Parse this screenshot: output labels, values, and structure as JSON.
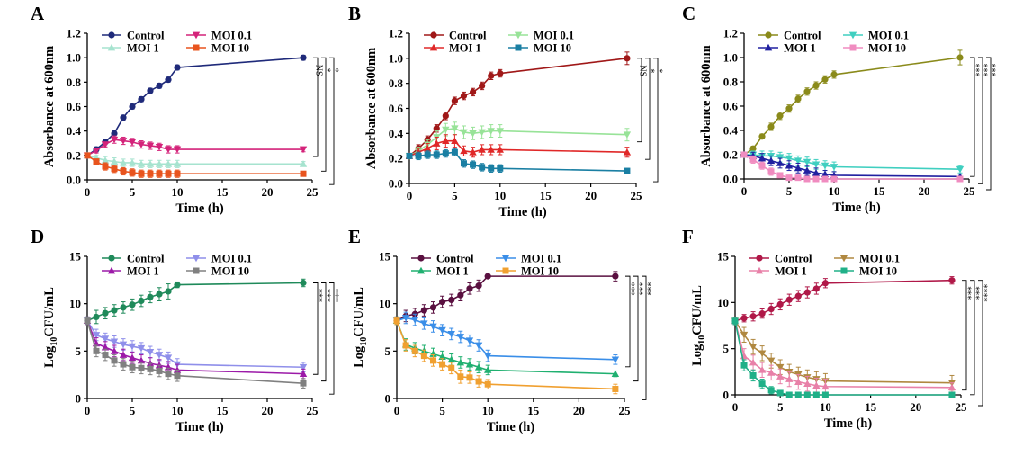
{
  "chart_data": [
    {
      "type": "line",
      "panel": "A",
      "ylabel": "Absorbance at 600nm",
      "xlabel": "Time (h)",
      "xlim": [
        0,
        25
      ],
      "ylim": [
        0,
        1.2
      ],
      "xticks": [
        0,
        5,
        10,
        15,
        20,
        25
      ],
      "yticks": [
        0.0,
        0.2,
        0.4,
        0.6,
        0.8,
        1.0,
        1.2
      ],
      "ydecimals": 1,
      "x": [
        0,
        1,
        2,
        3,
        4,
        5,
        6,
        7,
        8,
        9,
        10,
        24
      ],
      "legend_layout": "2x2",
      "series": [
        {
          "name": "Control",
          "color": "#1f2a7a",
          "marker": "circle",
          "values": [
            0.2,
            0.25,
            0.31,
            0.38,
            0.51,
            0.6,
            0.66,
            0.73,
            0.77,
            0.82,
            0.92,
            1.0
          ],
          "err": [
            0.01,
            0.02,
            0.02,
            0.02,
            0.02,
            0.02,
            0.02,
            0.02,
            0.02,
            0.02,
            0.02,
            0.02
          ]
        },
        {
          "name": "MOI 0.1",
          "color": "#d4237a",
          "marker": "tri_down",
          "values": [
            0.2,
            0.24,
            0.29,
            0.33,
            0.32,
            0.31,
            0.29,
            0.28,
            0.27,
            0.25,
            0.25,
            0.25
          ],
          "err": [
            0.01,
            0.02,
            0.02,
            0.03,
            0.03,
            0.03,
            0.03,
            0.03,
            0.03,
            0.03,
            0.03,
            0.02
          ]
        },
        {
          "name": "MOI 1",
          "color": "#a6e3cf",
          "marker": "tri_up",
          "values": [
            0.2,
            0.18,
            0.16,
            0.15,
            0.14,
            0.14,
            0.13,
            0.13,
            0.13,
            0.13,
            0.13,
            0.13
          ],
          "err": [
            0.01,
            0.02,
            0.03,
            0.03,
            0.03,
            0.03,
            0.03,
            0.03,
            0.03,
            0.03,
            0.03,
            0.02
          ]
        },
        {
          "name": "MOI 10",
          "color": "#e8541e",
          "marker": "square",
          "values": [
            0.2,
            0.15,
            0.11,
            0.09,
            0.07,
            0.06,
            0.05,
            0.05,
            0.05,
            0.05,
            0.05,
            0.05
          ],
          "err": [
            0.01,
            0.02,
            0.03,
            0.03,
            0.03,
            0.03,
            0.03,
            0.03,
            0.03,
            0.03,
            0.03,
            0.02
          ]
        }
      ],
      "significance": [
        "NS",
        "*",
        "*"
      ]
    },
    {
      "type": "line",
      "panel": "B",
      "ylabel": "Absorbance at 600nm",
      "xlabel": "Time (h)",
      "xlim": [
        0,
        25
      ],
      "ylim": [
        0,
        1.2
      ],
      "xticks": [
        0,
        5,
        10,
        15,
        20,
        25
      ],
      "yticks": [
        0.0,
        0.2,
        0.4,
        0.6,
        0.8,
        1.0,
        1.2
      ],
      "ydecimals": 1,
      "x": [
        0,
        1,
        2,
        3,
        4,
        5,
        6,
        7,
        8,
        9,
        10,
        24
      ],
      "legend_layout": "2x2",
      "series": [
        {
          "name": "Control",
          "color": "#a01818",
          "marker": "circle",
          "values": [
            0.22,
            0.28,
            0.35,
            0.44,
            0.54,
            0.66,
            0.7,
            0.73,
            0.78,
            0.86,
            0.88,
            1.0
          ],
          "err": [
            0.02,
            0.03,
            0.03,
            0.03,
            0.03,
            0.03,
            0.03,
            0.03,
            0.03,
            0.03,
            0.03,
            0.05
          ]
        },
        {
          "name": "MOI 0.1",
          "color": "#98e398",
          "marker": "tri_down",
          "values": [
            0.22,
            0.26,
            0.31,
            0.37,
            0.43,
            0.44,
            0.41,
            0.4,
            0.41,
            0.42,
            0.42,
            0.39
          ],
          "err": [
            0.02,
            0.03,
            0.04,
            0.05,
            0.05,
            0.05,
            0.05,
            0.05,
            0.05,
            0.05,
            0.05,
            0.05
          ]
        },
        {
          "name": "MOI 1",
          "color": "#e02828",
          "marker": "tri_up",
          "values": [
            0.22,
            0.25,
            0.28,
            0.32,
            0.34,
            0.34,
            0.26,
            0.25,
            0.27,
            0.27,
            0.27,
            0.25
          ],
          "err": [
            0.02,
            0.03,
            0.04,
            0.05,
            0.05,
            0.05,
            0.04,
            0.04,
            0.04,
            0.04,
            0.04,
            0.04
          ]
        },
        {
          "name": "MOI 10",
          "color": "#1a7fa3",
          "marker": "square",
          "values": [
            0.22,
            0.22,
            0.23,
            0.23,
            0.24,
            0.25,
            0.16,
            0.15,
            0.13,
            0.12,
            0.12,
            0.1
          ],
          "err": [
            0.02,
            0.03,
            0.03,
            0.03,
            0.03,
            0.03,
            0.03,
            0.03,
            0.03,
            0.03,
            0.03,
            0.02
          ]
        }
      ],
      "significance": [
        "NS",
        "*",
        "*"
      ]
    },
    {
      "type": "line",
      "panel": "C",
      "ylabel": "Absorbance at 600nm",
      "xlabel": "Time (h)",
      "xlim": [
        0,
        25
      ],
      "ylim": [
        0,
        1.2
      ],
      "xticks": [
        0,
        5,
        10,
        15,
        20,
        25
      ],
      "yticks": [
        0.0,
        0.2,
        0.4,
        0.6,
        0.8,
        1.0,
        1.2
      ],
      "ydecimals": 1,
      "x": [
        0,
        1,
        2,
        3,
        4,
        5,
        6,
        7,
        8,
        9,
        10,
        24
      ],
      "legend_layout": "2x2",
      "series": [
        {
          "name": "Control",
          "color": "#8a8a1a",
          "marker": "circle",
          "values": [
            0.2,
            0.25,
            0.35,
            0.43,
            0.52,
            0.58,
            0.66,
            0.72,
            0.77,
            0.82,
            0.86,
            1.0
          ],
          "err": [
            0.01,
            0.02,
            0.02,
            0.03,
            0.03,
            0.03,
            0.03,
            0.03,
            0.03,
            0.03,
            0.03,
            0.06
          ]
        },
        {
          "name": "MOI 0.1",
          "color": "#40cfc0",
          "marker": "tri_down",
          "values": [
            0.2,
            0.2,
            0.19,
            0.19,
            0.18,
            0.17,
            0.15,
            0.14,
            0.12,
            0.11,
            0.1,
            0.08
          ],
          "err": [
            0.01,
            0.03,
            0.04,
            0.04,
            0.04,
            0.04,
            0.04,
            0.04,
            0.04,
            0.04,
            0.04,
            0.03
          ]
        },
        {
          "name": "MOI 1",
          "color": "#2020a0",
          "marker": "tri_up",
          "values": [
            0.2,
            0.19,
            0.17,
            0.15,
            0.13,
            0.11,
            0.09,
            0.07,
            0.05,
            0.04,
            0.03,
            0.02
          ],
          "err": [
            0.01,
            0.03,
            0.04,
            0.04,
            0.04,
            0.04,
            0.04,
            0.04,
            0.04,
            0.03,
            0.03,
            0.02
          ]
        },
        {
          "name": "MOI 10",
          "color": "#f08cc0",
          "marker": "square",
          "values": [
            0.2,
            0.16,
            0.11,
            0.06,
            0.03,
            0.01,
            0.01,
            0.0,
            0.0,
            0.0,
            0.0,
            0.0
          ],
          "err": [
            0.01,
            0.03,
            0.03,
            0.03,
            0.02,
            0.01,
            0.01,
            0.01,
            0.01,
            0.01,
            0.01,
            0.01
          ]
        }
      ],
      "significance": [
        "***",
        "***",
        "***"
      ]
    },
    {
      "type": "line",
      "panel": "D",
      "ylabel": "Log10CFU/mL",
      "xlabel": "Time (h)",
      "xlim": [
        0,
        25
      ],
      "ylim": [
        0,
        15
      ],
      "xticks": [
        0,
        5,
        10,
        15,
        20,
        25
      ],
      "yticks": [
        0,
        5,
        10,
        15
      ],
      "ydecimals": 0,
      "x": [
        0,
        1,
        2,
        3,
        4,
        5,
        6,
        7,
        8,
        9,
        10,
        24
      ],
      "legend_layout": "2x2",
      "series": [
        {
          "name": "Control",
          "color": "#1f8a5a",
          "marker": "circle",
          "values": [
            8.2,
            8.6,
            9.0,
            9.3,
            9.6,
            9.9,
            10.3,
            10.7,
            11.0,
            11.3,
            12.0,
            12.2
          ],
          "err": [
            0.4,
            0.7,
            0.6,
            0.6,
            0.6,
            0.6,
            0.6,
            0.6,
            0.7,
            0.8,
            0.3,
            0.4
          ]
        },
        {
          "name": "MOI 0.1",
          "color": "#8f8fea",
          "marker": "tri_down",
          "values": [
            8.2,
            6.7,
            6.3,
            6.0,
            5.7,
            5.5,
            5.3,
            4.9,
            4.6,
            4.3,
            3.6,
            3.3
          ],
          "err": [
            0.4,
            0.6,
            0.6,
            0.6,
            0.6,
            0.6,
            0.6,
            0.6,
            0.6,
            0.6,
            0.6,
            0.5
          ]
        },
        {
          "name": "MOI 1",
          "color": "#9c1aa8",
          "marker": "tri_up",
          "values": [
            8.2,
            5.8,
            5.4,
            5.0,
            4.6,
            4.3,
            4.0,
            3.7,
            3.5,
            3.3,
            3.0,
            2.6
          ],
          "err": [
            0.4,
            0.6,
            0.6,
            0.6,
            0.6,
            0.6,
            0.6,
            0.6,
            0.6,
            0.6,
            0.6,
            0.5
          ]
        },
        {
          "name": "MOI 10",
          "color": "#808080",
          "marker": "square",
          "values": [
            8.2,
            5.0,
            4.6,
            4.0,
            3.6,
            3.3,
            3.2,
            3.1,
            2.9,
            2.6,
            2.4,
            1.6
          ],
          "err": [
            0.4,
            0.6,
            0.6,
            0.6,
            0.6,
            0.6,
            0.6,
            0.6,
            0.6,
            0.6,
            0.6,
            0.5
          ]
        }
      ],
      "significance": [
        "***",
        "***",
        "***"
      ]
    },
    {
      "type": "line",
      "panel": "E",
      "ylabel": "Log10CFU/mL",
      "xlabel": "Time (h)",
      "xlim": [
        0,
        25
      ],
      "ylim": [
        0,
        15
      ],
      "xticks": [
        0,
        5,
        10,
        15,
        20,
        25
      ],
      "yticks": [
        0,
        5,
        10,
        15
      ],
      "ydecimals": 0,
      "x": [
        0,
        1,
        2,
        3,
        4,
        5,
        6,
        7,
        8,
        9,
        10,
        24
      ],
      "legend_layout": "2x2",
      "series": [
        {
          "name": "Control",
          "color": "#5a1040",
          "marker": "circle",
          "values": [
            8.2,
            8.7,
            8.9,
            9.3,
            9.6,
            10.2,
            10.4,
            10.9,
            11.6,
            11.9,
            12.9,
            12.9
          ],
          "err": [
            0.4,
            0.6,
            0.6,
            0.6,
            0.6,
            0.6,
            0.6,
            0.6,
            0.6,
            0.6,
            0.2,
            0.5
          ]
        },
        {
          "name": "MOI 0.1",
          "color": "#3a8ee8",
          "marker": "tri_down",
          "values": [
            8.2,
            8.5,
            8.3,
            7.9,
            7.6,
            7.2,
            6.8,
            6.5,
            6.1,
            5.6,
            4.5,
            4.1
          ],
          "err": [
            0.4,
            0.6,
            0.6,
            0.6,
            0.6,
            0.6,
            0.6,
            0.6,
            0.6,
            0.6,
            0.6,
            0.5
          ]
        },
        {
          "name": "MOI 1",
          "color": "#20b070",
          "marker": "tri_up",
          "values": [
            8.2,
            5.7,
            5.3,
            5.0,
            4.7,
            4.4,
            4.1,
            3.8,
            3.6,
            3.3,
            3.0,
            2.6
          ],
          "err": [
            0.4,
            0.6,
            0.6,
            0.6,
            0.6,
            0.6,
            0.6,
            0.6,
            0.6,
            0.6,
            0.5,
            0.3
          ]
        },
        {
          "name": "MOI 10",
          "color": "#f0a030",
          "marker": "square",
          "values": [
            8.2,
            5.6,
            5.0,
            4.5,
            4.0,
            3.6,
            3.2,
            2.3,
            2.2,
            1.8,
            1.5,
            1.0
          ],
          "err": [
            0.4,
            0.6,
            0.6,
            0.6,
            0.6,
            0.6,
            0.6,
            0.7,
            0.6,
            0.6,
            0.5,
            0.5
          ]
        }
      ],
      "significance": [
        "***",
        "***",
        "***"
      ]
    },
    {
      "type": "line",
      "panel": "F",
      "ylabel": "Log10CFU/mL",
      "xlabel": "Time (h)",
      "xlim": [
        0,
        25
      ],
      "ylim": [
        0,
        15
      ],
      "xticks": [
        0,
        5,
        10,
        15,
        20,
        25
      ],
      "yticks": [
        0,
        5,
        10,
        15
      ],
      "ydecimals": 0,
      "x": [
        0,
        1,
        2,
        3,
        4,
        5,
        6,
        7,
        8,
        9,
        10,
        24
      ],
      "legend_layout": "2x2",
      "series": [
        {
          "name": "Control",
          "color": "#b01848",
          "marker": "circle",
          "values": [
            8.0,
            8.3,
            8.5,
            8.8,
            9.3,
            9.8,
            10.3,
            10.7,
            11.1,
            11.5,
            12.1,
            12.4
          ],
          "err": [
            0.4,
            0.4,
            0.5,
            0.5,
            0.6,
            0.6,
            0.6,
            0.6,
            0.6,
            0.6,
            0.5,
            0.4
          ]
        },
        {
          "name": "MOI 0.1",
          "color": "#b08840",
          "marker": "tri_down",
          "values": [
            8.0,
            6.5,
            5.2,
            4.5,
            3.7,
            3.0,
            2.5,
            2.2,
            1.9,
            1.7,
            1.5,
            1.3
          ],
          "err": [
            0.4,
            0.8,
            0.8,
            0.8,
            0.8,
            0.8,
            0.8,
            0.8,
            0.8,
            0.8,
            0.8,
            0.8
          ]
        },
        {
          "name": "MOI 1",
          "color": "#e880a8",
          "marker": "tri_up",
          "values": [
            8.0,
            4.2,
            3.5,
            2.7,
            2.4,
            2.0,
            1.7,
            1.4,
            1.2,
            1.0,
            0.9,
            0.8
          ],
          "err": [
            0.4,
            0.8,
            0.8,
            0.8,
            0.8,
            0.8,
            0.8,
            0.8,
            0.8,
            0.8,
            0.8,
            0.5
          ]
        },
        {
          "name": "MOI 10",
          "color": "#20b088",
          "marker": "square",
          "values": [
            8.0,
            3.2,
            2.1,
            1.2,
            0.5,
            0.2,
            0.0,
            0.0,
            0.0,
            0.0,
            0.0,
            0.0
          ],
          "err": [
            0.4,
            0.6,
            0.6,
            0.5,
            0.4,
            0.2,
            0.1,
            0.1,
            0.1,
            0.1,
            0.1,
            0.1
          ]
        }
      ],
      "significance": [
        "***",
        "***",
        "****"
      ]
    }
  ]
}
